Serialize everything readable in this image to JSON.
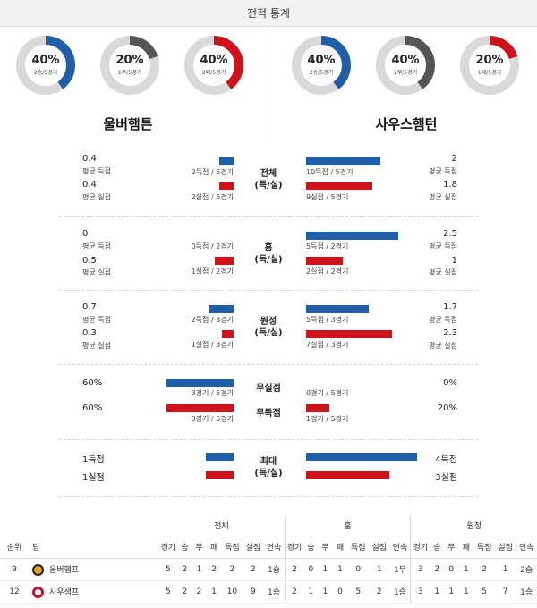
{
  "header": {
    "title": "전적 통계"
  },
  "donuts": [
    {
      "pct": "40%",
      "sub": "2승/5경기",
      "value": 40,
      "color": "#1f5fa8"
    },
    {
      "pct": "20%",
      "sub": "1무/5경기",
      "value": 20,
      "color": "#555555"
    },
    {
      "pct": "40%",
      "sub": "2패/5경기",
      "value": 40,
      "color": "#d0121b"
    },
    {
      "pct": "40%",
      "sub": "2승/5경기",
      "value": 40,
      "color": "#1f5fa8"
    },
    {
      "pct": "40%",
      "sub": "2무/5경기",
      "value": 40,
      "color": "#555555"
    },
    {
      "pct": "20%",
      "sub": "1패/5경기",
      "value": 20,
      "color": "#d0121b"
    }
  ],
  "teams": {
    "home": "울버햄튼",
    "away": "사우스햄턴"
  },
  "sections": {
    "total": {
      "center": [
        "전체",
        "(득/실)"
      ],
      "home_gf_avg": "0.4",
      "home_gf_lbl": "평균 득점",
      "home_gf_bar": "2득점 / 5경기",
      "home_ga_avg": "0.4",
      "home_ga_lbl": "평균 실점",
      "home_ga_bar": "2실점 / 5경기",
      "away_gf_avg": "2",
      "away_gf_lbl": "평균 득점",
      "away_gf_bar": "10득점 / 5경기",
      "away_ga_avg": "1.8",
      "away_ga_lbl": "평균 실점",
      "away_ga_bar": "9실점 / 5경기"
    },
    "home": {
      "center": [
        "홈",
        "(득/실)"
      ],
      "home_gf_avg": "0",
      "home_gf_lbl": "평균 득점",
      "home_gf_bar": "0득점 / 2경기",
      "home_ga_avg": "0.5",
      "home_ga_lbl": "평균 실점",
      "home_ga_bar": "1실점 / 2경기",
      "away_gf_avg": "2.5",
      "away_gf_lbl": "평균 득점",
      "away_gf_bar": "5득점 / 2경기",
      "away_ga_avg": "1",
      "away_ga_lbl": "평균 실점",
      "away_ga_bar": "2실점 / 2경기"
    },
    "away": {
      "center": [
        "원정",
        "(득/실)"
      ],
      "home_gf_avg": "0.7",
      "home_gf_lbl": "평균 득점",
      "home_gf_bar": "2득점 / 3경기",
      "home_ga_avg": "0.3",
      "home_ga_lbl": "평균 실점",
      "home_ga_bar": "1실점 / 3경기",
      "away_gf_avg": "1.7",
      "away_gf_lbl": "평균 득점",
      "away_gf_bar": "5득점 / 3경기",
      "away_ga_avg": "2.3",
      "away_ga_lbl": "평균 실점",
      "away_ga_bar": "7실점 / 3경기"
    },
    "clean": {
      "center1": "무실점",
      "center2": "무득점",
      "home_cs": "60%",
      "home_cs_bar": "3경기 / 5경기",
      "home_ns": "60%",
      "home_ns_bar": "3경기 / 5경기",
      "away_cs": "0%",
      "away_cs_bar": "0경기 / 5경기",
      "away_ns": "20%",
      "away_ns_bar": "1경기 / 5경기"
    },
    "max": {
      "center": [
        "최대",
        "(득/실)"
      ],
      "home_gf": "1득점",
      "home_ga": "1실점",
      "away_gf": "4득점",
      "away_ga": "3실점"
    }
  },
  "table": {
    "groups": [
      "전체",
      "홈",
      "원정"
    ],
    "rank_hdr": "순위",
    "team_hdr": "팀",
    "cols": [
      "경기",
      "승",
      "무",
      "패",
      "득점",
      "실점",
      "연속"
    ],
    "rows": [
      {
        "rank": "9",
        "team": "울버햄프",
        "logo_color": "#e8a21a",
        "total": [
          "5",
          "2",
          "1",
          "2",
          "2",
          "2",
          "1승"
        ],
        "home": [
          "2",
          "0",
          "1",
          "1",
          "0",
          "1",
          "1무"
        ],
        "away": [
          "3",
          "2",
          "0",
          "1",
          "2",
          "1",
          "2승"
        ]
      },
      {
        "rank": "12",
        "team": "사우샘프",
        "logo_color": "#c8102e",
        "total": [
          "5",
          "2",
          "2",
          "1",
          "10",
          "9",
          "1승"
        ],
        "home": [
          "2",
          "1",
          "1",
          "0",
          "5",
          "2",
          "1승"
        ],
        "away": [
          "3",
          "1",
          "1",
          "1",
          "5",
          "7",
          "1승"
        ]
      }
    ]
  }
}
